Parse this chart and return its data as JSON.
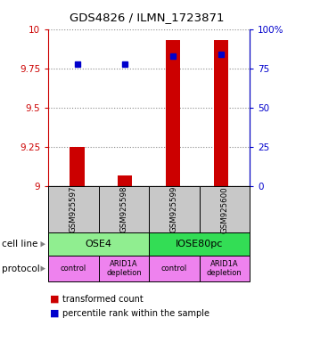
{
  "title": "GDS4826 / ILMN_1723871",
  "samples": [
    "GSM925597",
    "GSM925598",
    "GSM925599",
    "GSM925600"
  ],
  "red_values": [
    9.25,
    9.07,
    9.93,
    9.93
  ],
  "blue_values": [
    78,
    78,
    83,
    84
  ],
  "ylim_left": [
    9.0,
    10.0
  ],
  "ylim_right": [
    0,
    100
  ],
  "yticks_left": [
    9.0,
    9.25,
    9.5,
    9.75,
    10.0
  ],
  "ytick_labels_left": [
    "9",
    "9.25",
    "9.5",
    "9.75",
    "10"
  ],
  "yticks_right": [
    0,
    25,
    50,
    75,
    100
  ],
  "ytick_labels_right": [
    "0",
    "25",
    "50",
    "75",
    "100%"
  ],
  "cell_line_labels": [
    "OSE4",
    "IOSE80pc"
  ],
  "cell_line_colors": [
    "#90EE90",
    "#33DD55"
  ],
  "protocol_labels": [
    "control",
    "ARID1A\ndepletion",
    "control",
    "ARID1A\ndepletion"
  ],
  "protocol_color": "#EE82EE",
  "bar_color": "#CC0000",
  "dot_color": "#0000CC",
  "sample_box_color": "#C8C8C8",
  "grid_color": "#888888",
  "left_axis_color": "#CC0000",
  "right_axis_color": "#0000CC",
  "bar_width": 0.3
}
